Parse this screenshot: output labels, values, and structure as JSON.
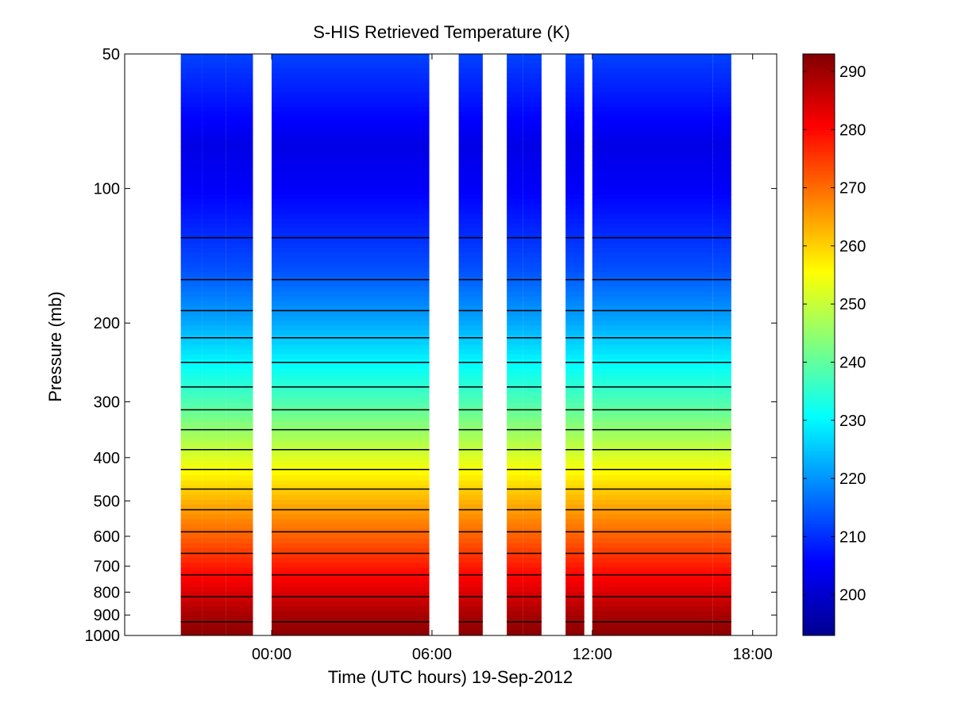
{
  "chart_data": {
    "type": "heatmap",
    "title": "S-HIS Retrieved Temperature (K)",
    "xlabel": "Time (UTC hours) 19-Sep-2012",
    "ylabel": "Pressure (mb)",
    "y_scale": "log",
    "y_reversed": true,
    "xlim_hours": [
      -5.5,
      18.9
    ],
    "ylim": [
      50,
      1000
    ],
    "x_ticks": [
      {
        "value": 0,
        "label": "00:00"
      },
      {
        "value": 6,
        "label": "06:00"
      },
      {
        "value": 12,
        "label": "12:00"
      },
      {
        "value": 18,
        "label": "18:00"
      }
    ],
    "y_ticks": [
      {
        "value": 50,
        "label": "50"
      },
      {
        "value": 100,
        "label": "100"
      },
      {
        "value": 200,
        "label": "200"
      },
      {
        "value": 300,
        "label": "300"
      },
      {
        "value": 400,
        "label": "400"
      },
      {
        "value": 500,
        "label": "500"
      },
      {
        "value": 600,
        "label": "600"
      },
      {
        "value": 700,
        "label": "700"
      },
      {
        "value": 800,
        "label": "800"
      },
      {
        "value": 900,
        "label": "900"
      },
      {
        "value": 1000,
        "label": "1000"
      }
    ],
    "colorbar": {
      "colormap": "jet",
      "range": [
        193,
        293
      ],
      "ticks": [
        200,
        210,
        220,
        230,
        240,
        250,
        260,
        270,
        280,
        290
      ],
      "tick_labels": [
        "200",
        "210",
        "220",
        "230",
        "240",
        "250",
        "260",
        "270",
        "280",
        "290"
      ]
    },
    "data_segments_hours": [
      [
        -3.4,
        -2.6
      ],
      [
        -2.6,
        -1.7
      ],
      [
        -1.7,
        -0.7
      ],
      [
        0.0,
        5.9
      ],
      [
        7.0,
        7.9
      ],
      [
        8.8,
        9.4
      ],
      [
        9.4,
        10.1
      ],
      [
        11.0,
        11.7
      ],
      [
        12.0,
        16.5
      ],
      [
        16.5,
        17.2
      ]
    ],
    "temperature_profile": [
      {
        "pressure": 50,
        "temperature": 212
      },
      {
        "pressure": 80,
        "temperature": 203
      },
      {
        "pressure": 100,
        "temperature": 205
      },
      {
        "pressure": 150,
        "temperature": 213
      },
      {
        "pressure": 200,
        "temperature": 222
      },
      {
        "pressure": 300,
        "temperature": 238
      },
      {
        "pressure": 400,
        "temperature": 252
      },
      {
        "pressure": 500,
        "temperature": 263
      },
      {
        "pressure": 600,
        "temperature": 271
      },
      {
        "pressure": 700,
        "temperature": 278
      },
      {
        "pressure": 800,
        "temperature": 284
      },
      {
        "pressure": 900,
        "temperature": 289
      },
      {
        "pressure": 1000,
        "temperature": 292
      }
    ],
    "contour_interval_K": 5,
    "grid": false
  }
}
